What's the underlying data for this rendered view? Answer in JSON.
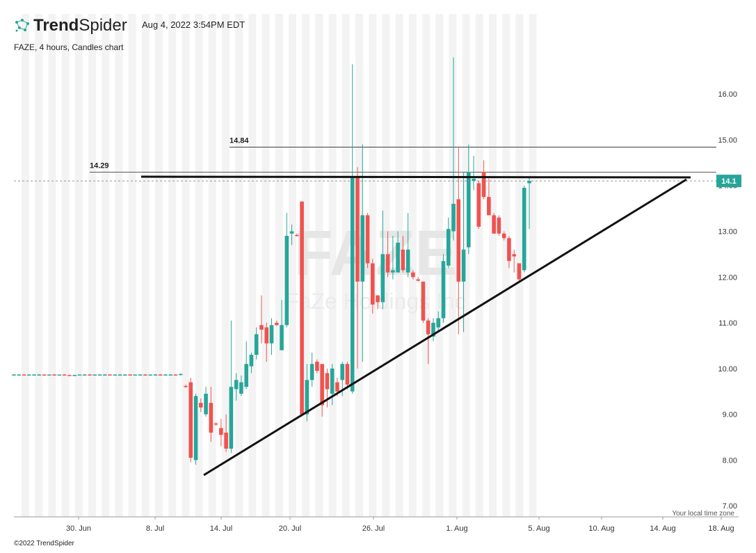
{
  "chart_data": {
    "type": "candlestick",
    "logo": {
      "bold": "Trend",
      "light": "Spider"
    },
    "timestamp": "Aug 4, 2022 3:54PM EDT",
    "title": "FAZE, 4 hours, Candles chart",
    "watermark": {
      "symbol": "FAZE",
      "name": "FaZe Holdings Inc"
    },
    "timezone_note": "Your local time zone",
    "copyright": "©2022 TrendSpider",
    "up_color": "#26a69a",
    "down_color": "#ef5350",
    "ylim": [
      6.76,
      17.75
    ],
    "yticks": [
      {
        "value": 7,
        "label": "7.00"
      },
      {
        "value": 8,
        "label": "8.00"
      },
      {
        "value": 9,
        "label": "9.00"
      },
      {
        "value": 10,
        "label": "10.00"
      },
      {
        "value": 11,
        "label": "11.00"
      },
      {
        "value": 12,
        "label": "12.00"
      },
      {
        "value": 13,
        "label": "13.00"
      },
      {
        "value": 14,
        "label": "14.00"
      },
      {
        "value": 15,
        "label": "15.00"
      },
      {
        "value": 16,
        "label": "16.00"
      }
    ],
    "xticks": [
      "30. Jun",
      "8. Jul",
      "14. Jul",
      "20. Jul",
      "26. Jul",
      "1. Aug",
      "5. Aug",
      "10. Aug",
      "14. Aug",
      "18. Aug"
    ],
    "levels": [
      14.84,
      14.29
    ],
    "last_price": 14.1,
    "candles": [
      [
        9.87,
        9.88,
        9.86,
        9.87
      ],
      [
        9.87,
        9.88,
        9.86,
        9.87
      ],
      [
        9.87,
        9.88,
        9.86,
        9.86
      ],
      [
        9.86,
        9.87,
        9.85,
        9.87
      ],
      [
        9.87,
        9.88,
        9.86,
        9.87
      ],
      [
        9.87,
        9.88,
        9.86,
        9.87
      ],
      [
        9.87,
        9.87,
        9.84,
        9.85
      ],
      [
        9.85,
        9.87,
        9.85,
        9.87
      ],
      [
        9.87,
        9.88,
        9.86,
        9.86
      ],
      [
        9.86,
        9.87,
        9.85,
        9.87
      ],
      [
        9.87,
        9.88,
        9.86,
        9.86
      ],
      [
        9.86,
        9.87,
        9.84,
        9.85
      ],
      [
        9.85,
        9.87,
        9.85,
        9.86
      ],
      [
        9.86,
        9.87,
        9.85,
        9.87
      ],
      [
        9.87,
        9.88,
        9.86,
        9.87
      ],
      [
        9.87,
        9.88,
        9.86,
        9.86
      ],
      [
        9.86,
        9.87,
        9.85,
        9.87
      ],
      [
        9.87,
        9.88,
        9.86,
        9.87
      ],
      [
        9.87,
        9.88,
        9.86,
        9.87
      ],
      [
        9.87,
        9.88,
        9.86,
        9.86
      ],
      [
        9.86,
        9.87,
        9.85,
        9.87
      ],
      [
        9.87,
        9.88,
        9.86,
        9.87
      ],
      [
        9.87,
        9.88,
        9.86,
        9.87
      ],
      [
        9.87,
        9.88,
        9.86,
        9.86
      ],
      [
        9.86,
        9.87,
        9.85,
        9.87
      ],
      [
        9.87,
        9.88,
        9.86,
        9.87
      ],
      [
        9.87,
        9.88,
        9.85,
        9.85
      ],
      [
        9.85,
        9.87,
        9.85,
        9.87
      ],
      [
        9.87,
        9.88,
        9.86,
        9.87
      ],
      [
        9.87,
        9.88,
        9.86,
        9.86
      ],
      [
        9.86,
        9.88,
        9.85,
        9.87
      ],
      [
        9.87,
        9.88,
        9.86,
        9.87
      ],
      [
        9.87,
        9.88,
        9.86,
        9.86
      ],
      [
        9.86,
        9.9,
        9.85,
        9.88
      ],
      [
        9.62,
        9.65,
        9.58,
        9.6
      ],
      [
        9.7,
        9.8,
        7.95,
        8.05
      ],
      [
        8.0,
        9.45,
        7.9,
        9.4
      ],
      [
        9.25,
        9.35,
        9.05,
        9.15
      ],
      [
        9.0,
        9.6,
        8.95,
        9.45
      ],
      [
        9.25,
        9.6,
        8.4,
        8.6
      ],
      [
        8.8,
        8.82,
        8.75,
        8.78
      ],
      [
        8.7,
        8.9,
        8.3,
        8.55
      ],
      [
        8.6,
        9.0,
        8.18,
        8.25
      ],
      [
        8.25,
        11.05,
        8.15,
        9.6
      ],
      [
        9.55,
        9.9,
        9.3,
        9.75
      ],
      [
        9.45,
        9.85,
        9.4,
        9.7
      ],
      [
        9.6,
        10.6,
        9.55,
        10.1
      ],
      [
        10.05,
        10.35,
        9.9,
        10.3
      ],
      [
        10.3,
        10.9,
        10.2,
        10.75
      ],
      [
        10.95,
        11.6,
        10.55,
        10.85
      ],
      [
        10.9,
        11.0,
        10.15,
        10.55
      ],
      [
        10.55,
        11.1,
        10.3,
        10.95
      ],
      [
        11.0,
        11.05,
        10.93,
        10.95
      ],
      [
        10.4,
        11.5,
        10.4,
        10.95
      ],
      [
        10.95,
        13.4,
        10.9,
        12.9
      ],
      [
        12.95,
        13.15,
        12.7,
        13.0
      ],
      [
        12.92,
        12.95,
        12.88,
        12.9
      ],
      [
        13.65,
        13.65,
        8.95,
        9.0
      ],
      [
        9.0,
        10.1,
        8.85,
        9.75
      ],
      [
        9.75,
        10.35,
        9.6,
        10.1
      ],
      [
        10.15,
        10.2,
        9.9,
        9.95
      ],
      [
        10.1,
        10.1,
        8.95,
        9.2
      ],
      [
        9.9,
        10.0,
        9.15,
        9.55
      ],
      [
        9.45,
        10.1,
        9.2,
        10.0
      ],
      [
        9.7,
        9.8,
        9.4,
        9.5
      ],
      [
        9.75,
        10.15,
        9.4,
        10.1
      ],
      [
        10.1,
        10.15,
        9.55,
        9.65
      ],
      [
        9.5,
        16.65,
        9.45,
        14.2
      ],
      [
        14.2,
        14.4,
        10.0,
        11.9
      ],
      [
        11.9,
        14.9,
        10.15,
        13.35
      ],
      [
        13.35,
        13.4,
        12.2,
        12.3
      ],
      [
        12.3,
        12.4,
        11.2,
        11.4
      ],
      [
        11.6,
        11.6,
        11.3,
        11.45
      ],
      [
        11.45,
        13.45,
        11.3,
        12.5
      ],
      [
        12.5,
        13.0,
        12.0,
        12.1
      ],
      [
        12.1,
        12.9,
        11.95,
        12.15
      ],
      [
        12.1,
        13.0,
        12.1,
        12.75
      ],
      [
        12.6,
        12.9,
        12.1,
        12.15
      ],
      [
        12.1,
        13.4,
        12.0,
        12.6
      ],
      [
        12.1,
        12.15,
        11.95,
        12.0
      ],
      [
        11.95,
        12.0,
        11.9,
        11.92
      ],
      [
        11.9,
        11.9,
        11.0,
        11.05
      ],
      [
        11.05,
        11.1,
        10.1,
        10.75
      ],
      [
        10.7,
        11.1,
        10.6,
        11.0
      ],
      [
        10.9,
        11.25,
        10.8,
        11.1
      ],
      [
        11.1,
        12.5,
        11.0,
        12.35
      ],
      [
        12.25,
        13.3,
        12.2,
        13.05
      ],
      [
        13.0,
        16.8,
        12.8,
        13.6
      ],
      [
        13.7,
        14.85,
        10.75,
        11.9
      ],
      [
        11.9,
        14.3,
        10.8,
        12.6
      ],
      [
        12.65,
        14.9,
        12.5,
        14.3
      ],
      [
        14.1,
        14.65,
        13.9,
        14.15
      ],
      [
        14.05,
        14.1,
        13.05,
        13.1
      ],
      [
        14.3,
        14.55,
        13.7,
        13.75
      ],
      [
        13.75,
        14.15,
        13.35,
        13.35
      ],
      [
        13.35,
        13.4,
        12.95,
        12.95
      ],
      [
        13.3,
        13.35,
        12.9,
        12.95
      ],
      [
        12.95,
        13.0,
        12.8,
        12.85
      ],
      [
        12.85,
        12.9,
        12.2,
        12.35
      ],
      [
        12.5,
        12.6,
        12.1,
        12.45
      ],
      [
        12.3,
        12.3,
        11.9,
        11.95
      ],
      [
        12.15,
        14.0,
        12.1,
        13.95
      ],
      [
        14.05,
        14.2,
        13.05,
        14.1
      ]
    ]
  }
}
